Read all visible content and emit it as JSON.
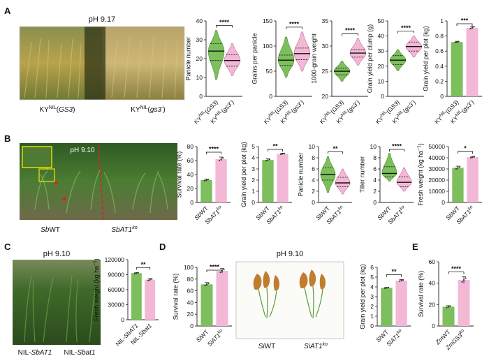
{
  "colors": {
    "green": "#7cbf5c",
    "pink": "#f3b8d6",
    "green_dark": "#4e8f34",
    "pink_dark": "#c56d9a"
  },
  "panels": {
    "A": {
      "letter": "A",
      "photo_label": "pH 9.17",
      "left_label": "KY",
      "left_sup": "NIL",
      "left_gene": "GS3",
      "right_label": "KY",
      "right_sup": "NIL",
      "right_gene": "gs3",
      "right_gene_sup": "-"
    },
    "B": {
      "letter": "B",
      "photo_label": "pH 9.10",
      "left_label": "Sb",
      "left_label_rest": "WT",
      "right_label": "SbAT1",
      "right_sup": "ko"
    },
    "C": {
      "letter": "C",
      "photo_label": "pH 9.10",
      "left_label": "NIL-",
      "left_gene": "SbAT1",
      "right_label": "NIL-",
      "right_gene": "Sbat1"
    },
    "D": {
      "letter": "D",
      "photo_label": "pH 9.10",
      "left_label": "Si",
      "left_label_rest": "WT",
      "right_label": "SiAT1",
      "right_sup": "ko"
    },
    "E": {
      "letter": "E"
    }
  },
  "chart_data": [
    {
      "id": "A1",
      "type": "violin",
      "ylabel": "Panicle number",
      "ylim": [
        0,
        40
      ],
      "yticks": [
        0,
        10,
        20,
        30,
        40
      ],
      "categories": [
        "KY(GS3)",
        "KY(gs3-)"
      ],
      "medians": [
        24,
        19
      ],
      "q1": [
        19,
        16
      ],
      "q3": [
        28,
        22
      ],
      "min": [
        9,
        11
      ],
      "max": [
        35,
        28
      ],
      "sig": "****"
    },
    {
      "id": "A2",
      "type": "violin",
      "ylabel": "Grains per panicle",
      "ylim": [
        0,
        150
      ],
      "yticks": [
        0,
        50,
        100,
        150
      ],
      "categories": [
        "KY(GS3)",
        "KY(gs3-)"
      ],
      "medians": [
        72,
        85
      ],
      "q1": [
        62,
        73
      ],
      "q3": [
        82,
        96
      ],
      "min": [
        38,
        50
      ],
      "max": [
        118,
        128
      ],
      "sig": "****"
    },
    {
      "id": "A3",
      "type": "violin",
      "ylabel": "1000-grain weight",
      "ylim": [
        20,
        35
      ],
      "yticks": [
        20,
        25,
        30,
        35
      ],
      "categories": [
        "KY(GS3)",
        "KY(gs3-)"
      ],
      "medians": [
        25.0,
        28.6
      ],
      "q1": [
        24.3,
        27.8
      ],
      "q3": [
        25.6,
        29.3
      ],
      "min": [
        23.0,
        26.2
      ],
      "max": [
        27.0,
        31.5
      ],
      "sig": "****"
    },
    {
      "id": "A4",
      "type": "violin",
      "ylabel": "Grain yield per clump (g)",
      "ylim": [
        0,
        50
      ],
      "yticks": [
        0,
        10,
        20,
        30,
        40,
        50
      ],
      "categories": [
        "KY(GS3)",
        "KY(gs3-)"
      ],
      "medians": [
        24,
        33
      ],
      "q1": [
        21,
        30
      ],
      "q3": [
        27,
        36
      ],
      "min": [
        17,
        26
      ],
      "max": [
        31,
        40
      ],
      "sig": "****"
    },
    {
      "id": "A5",
      "type": "bar",
      "ylabel": "Grain yield per plot (kg)",
      "ylim": [
        0,
        1.0
      ],
      "yticks": [
        0,
        0.2,
        0.4,
        0.6,
        0.8,
        1.0
      ],
      "categories": [
        "KY(GS3)",
        "KY(gs3-)"
      ],
      "values": [
        0.72,
        0.91
      ],
      "errors": [
        0.01,
        0.02
      ],
      "sig": "***"
    },
    {
      "id": "B1",
      "type": "bar",
      "ylabel": "Survival rate (%)",
      "ylim": [
        0,
        80
      ],
      "yticks": [
        0,
        20,
        40,
        60,
        80
      ],
      "categories": [
        "SbWT",
        "SbAT1ko"
      ],
      "values": [
        32,
        62
      ],
      "errors": [
        1.5,
        3
      ],
      "sig": "****"
    },
    {
      "id": "B2",
      "type": "bar",
      "ylabel": "Grain yield per plot (kg)",
      "ylim": [
        0,
        5
      ],
      "yticks": [
        0,
        1,
        2,
        3,
        4,
        5
      ],
      "categories": [
        "SbWT",
        "SbAT1ko"
      ],
      "values": [
        3.8,
        4.35
      ],
      "errors": [
        0.1,
        0.06
      ],
      "sig": "**"
    },
    {
      "id": "B3",
      "type": "violin",
      "ylabel": "Panicle number",
      "ylim": [
        0,
        10
      ],
      "yticks": [
        0,
        2,
        4,
        6,
        8,
        10
      ],
      "categories": [
        "SbWT",
        "SbAT1ko"
      ],
      "medians": [
        5,
        3.5
      ],
      "q1": [
        4,
        2.8
      ],
      "q3": [
        6.2,
        4.5
      ],
      "min": [
        1.8,
        1.5
      ],
      "max": [
        8.2,
        6
      ],
      "sig": "**"
    },
    {
      "id": "B4",
      "type": "violin",
      "ylabel": "Tiller number",
      "ylim": [
        0,
        10
      ],
      "yticks": [
        0,
        2,
        4,
        6,
        8,
        10
      ],
      "categories": [
        "SbWT",
        "SbAT1ko"
      ],
      "medians": [
        5.2,
        3.6
      ],
      "q1": [
        4.6,
        2.8
      ],
      "q3": [
        6.4,
        4.6
      ],
      "min": [
        3.8,
        2.0
      ],
      "max": [
        8.8,
        6.2
      ],
      "sig": "****"
    },
    {
      "id": "B5",
      "type": "bar",
      "ylabel": "Fresh weight (kg ha⁻¹)",
      "ylim": [
        0,
        50000
      ],
      "yticks": [
        0,
        10000,
        20000,
        30000,
        40000,
        50000
      ],
      "categories": [
        "SbWT",
        "SbAT1ko"
      ],
      "values": [
        31000,
        40500
      ],
      "errors": [
        1500,
        700
      ],
      "sig": "*"
    },
    {
      "id": "C1",
      "type": "bar",
      "ylabel": "Fresh weight (kg ha⁻¹)",
      "ylim": [
        0,
        120000
      ],
      "yticks": [
        0,
        30000,
        60000,
        90000,
        120000
      ],
      "categories": [
        "NIL-SbAT1",
        "NIL-Sbat1"
      ],
      "values": [
        93000,
        80000
      ],
      "errors": [
        1500,
        2500
      ],
      "sig": "**"
    },
    {
      "id": "D1",
      "type": "bar",
      "ylabel": "Survival rate (%)",
      "ylim": [
        0,
        100
      ],
      "yticks": [
        0,
        20,
        40,
        60,
        80,
        100
      ],
      "categories": [
        "SiWT",
        "SiAT1ko"
      ],
      "values": [
        71,
        94
      ],
      "errors": [
        3,
        4
      ],
      "sig": "****"
    },
    {
      "id": "D2",
      "type": "bar",
      "ylabel": "Grain yield per plot (kg)",
      "ylim": [
        0,
        6
      ],
      "yticks": [
        0,
        1,
        2,
        3,
        4,
        5,
        6
      ],
      "categories": [
        "SiWT",
        "SiAT1ko"
      ],
      "values": [
        3.9,
        4.65
      ],
      "errors": [
        0.05,
        0.1
      ],
      "sig": "**"
    },
    {
      "id": "E1",
      "type": "bar",
      "ylabel": "Survival rate (%)",
      "ylim": [
        0,
        60
      ],
      "yticks": [
        0,
        20,
        40,
        60
      ],
      "categories": [
        "ZmWT",
        "ZmGS3ko"
      ],
      "values": [
        18,
        43
      ],
      "errors": [
        1,
        3
      ],
      "sig": "****"
    }
  ]
}
